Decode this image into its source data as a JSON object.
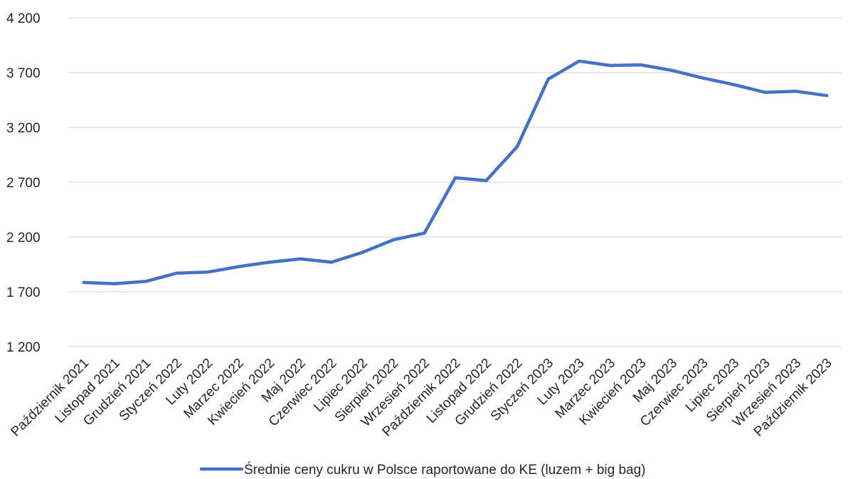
{
  "chart_data": {
    "type": "line",
    "categories": [
      "Październik 2021",
      "Listopad 2021",
      "Grudzień 2021",
      "Styczeń 2022",
      "Luty 2022",
      "Marzec 2022",
      "Kwiecień 2022",
      "Maj 2022",
      "Czerwiec 2022",
      "Lipiec 2022",
      "Sierpień 2022",
      "Wrzesień 2022",
      "Październik 2022",
      "Listopad 2022",
      "Grudzień 2022",
      "Styczeń 2023",
      "Luty 2023",
      "Marzec 2023",
      "Kwiecień 2023",
      "Maj 2023",
      "Czerwiec 2023",
      "Lipiec 2023",
      "Sierpień 2023",
      "Wrzesień 2023",
      "Październik 2023"
    ],
    "series": [
      {
        "name": "Średnie ceny cukru w Polsce raportowane do KE (luzem + big bag)",
        "color": "#4472c4",
        "values": [
          1785,
          1774,
          1795,
          1870,
          1880,
          1930,
          1970,
          2000,
          1970,
          2060,
          2175,
          2235,
          2740,
          2715,
          3025,
          3640,
          3805,
          3765,
          3770,
          3720,
          3650,
          3590,
          3520,
          3530,
          3490
        ]
      }
    ],
    "yticks": [
      "4 200",
      "3 700",
      "3 200",
      "2 700",
      "2 200",
      "1 700",
      "1 200"
    ],
    "ylim": [
      1200,
      4200
    ],
    "grid": true,
    "legend": "bottom",
    "title": "",
    "xlabel": "",
    "ylabel": ""
  }
}
